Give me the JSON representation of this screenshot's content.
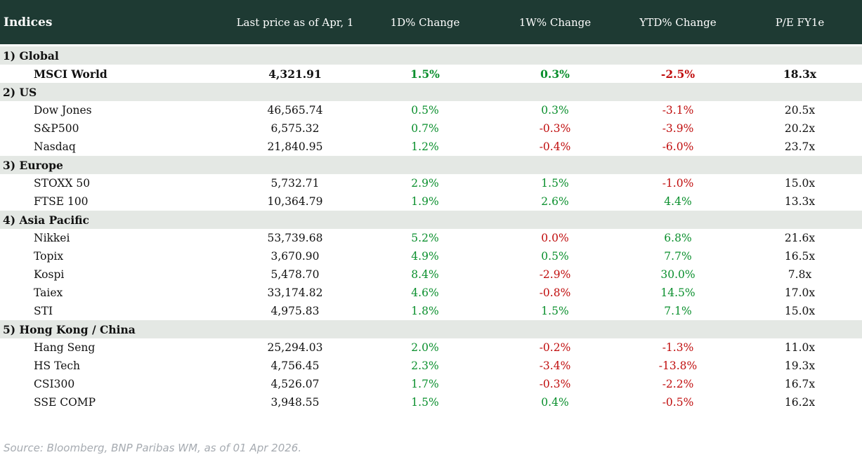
{
  "chart_data": {
    "type": "table",
    "title": "Indices",
    "columns": [
      "Indices",
      "Last price as of Apr, 1",
      "1D% Change",
      "1W% Change",
      "YTD% Change",
      "P/E FY1e"
    ],
    "sections": [
      {
        "label": "1) Global",
        "rows": [
          {
            "name": "MSCI World",
            "price": "4,321.91",
            "d1": "1.5%",
            "w1": "0.3%",
            "ytd": "-2.5%",
            "pe": "18.3x",
            "bold": true,
            "colors": [
              "pos",
              "pos",
              "neg"
            ]
          }
        ]
      },
      {
        "label": "2) US",
        "rows": [
          {
            "name": "Dow Jones",
            "price": "46,565.74",
            "d1": "0.5%",
            "w1": "0.3%",
            "ytd": "-3.1%",
            "pe": "20.5x",
            "colors": [
              "pos",
              "pos",
              "neg"
            ]
          },
          {
            "name": "S&P500",
            "price": "6,575.32",
            "d1": "0.7%",
            "w1": "-0.3%",
            "ytd": "-3.9%",
            "pe": "20.2x",
            "colors": [
              "pos",
              "neg",
              "neg"
            ]
          },
          {
            "name": "Nasdaq",
            "price": "21,840.95",
            "d1": "1.2%",
            "w1": "-0.4%",
            "ytd": "-6.0%",
            "pe": "23.7x",
            "colors": [
              "pos",
              "neg",
              "neg"
            ]
          }
        ]
      },
      {
        "label": "3) Europe",
        "rows": [
          {
            "name": "STOXX 50",
            "price": "5,732.71",
            "d1": "2.9%",
            "w1": "1.5%",
            "ytd": "-1.0%",
            "pe": "15.0x",
            "colors": [
              "pos",
              "pos",
              "neg"
            ]
          },
          {
            "name": "FTSE 100",
            "price": "10,364.79",
            "d1": "1.9%",
            "w1": "2.6%",
            "ytd": "4.4%",
            "pe": "13.3x",
            "colors": [
              "pos",
              "pos",
              "pos"
            ]
          }
        ]
      },
      {
        "label": "4) Asia Pacific",
        "rows": [
          {
            "name": "Nikkei",
            "price": "53,739.68",
            "d1": "5.2%",
            "w1": "0.0%",
            "ytd": "6.8%",
            "pe": "21.6x",
            "colors": [
              "pos",
              "neg",
              "pos"
            ]
          },
          {
            "name": "Topix",
            "price": "3,670.90",
            "d1": "4.9%",
            "w1": "0.5%",
            "ytd": "7.7%",
            "pe": "16.5x",
            "colors": [
              "pos",
              "pos",
              "pos"
            ]
          },
          {
            "name": "Kospi",
            "price": "5,478.70",
            "d1": "8.4%",
            "w1": "-2.9%",
            "ytd": "30.0%",
            "pe": "7.8x",
            "colors": [
              "pos",
              "neg",
              "pos"
            ]
          },
          {
            "name": "Taiex",
            "price": "33,174.82",
            "d1": "4.6%",
            "w1": "-0.8%",
            "ytd": "14.5%",
            "pe": "17.0x",
            "colors": [
              "pos",
              "neg",
              "pos"
            ]
          },
          {
            "name": "STI",
            "price": "4,975.83",
            "d1": "1.8%",
            "w1": "1.5%",
            "ytd": "7.1%",
            "pe": "15.0x",
            "colors": [
              "pos",
              "pos",
              "pos"
            ]
          }
        ]
      },
      {
        "label": "5) Hong Kong / China",
        "rows": [
          {
            "name": "Hang Seng",
            "price": "25,294.03",
            "d1": "2.0%",
            "w1": "-0.2%",
            "ytd": "-1.3%",
            "pe": "11.0x",
            "colors": [
              "pos",
              "neg",
              "neg"
            ]
          },
          {
            "name": "HS Tech",
            "price": "4,756.45",
            "d1": "2.3%",
            "w1": "-3.4%",
            "ytd": "-13.8%",
            "pe": "19.3x",
            "colors": [
              "pos",
              "neg",
              "neg"
            ]
          },
          {
            "name": "CSI300",
            "price": "4,526.07",
            "d1": "1.7%",
            "w1": "-0.3%",
            "ytd": "-2.2%",
            "pe": "16.7x",
            "colors": [
              "pos",
              "neg",
              "neg"
            ]
          },
          {
            "name": "SSE COMP",
            "price": "3,948.55",
            "d1": "1.5%",
            "w1": "0.4%",
            "ytd": "-0.5%",
            "pe": "16.2x",
            "colors": [
              "pos",
              "pos",
              "neg"
            ]
          }
        ]
      }
    ]
  },
  "footer": {
    "source_note": "Source: Bloomberg, BNP Paribas WM, as of 01 Apr 2026."
  },
  "colors": {
    "header_bg": "#1e3a33",
    "section_bg": "#e4e8e4",
    "positive": "#0a8f2d",
    "negative": "#c00d0d",
    "footer_text": "#a6abb1"
  }
}
